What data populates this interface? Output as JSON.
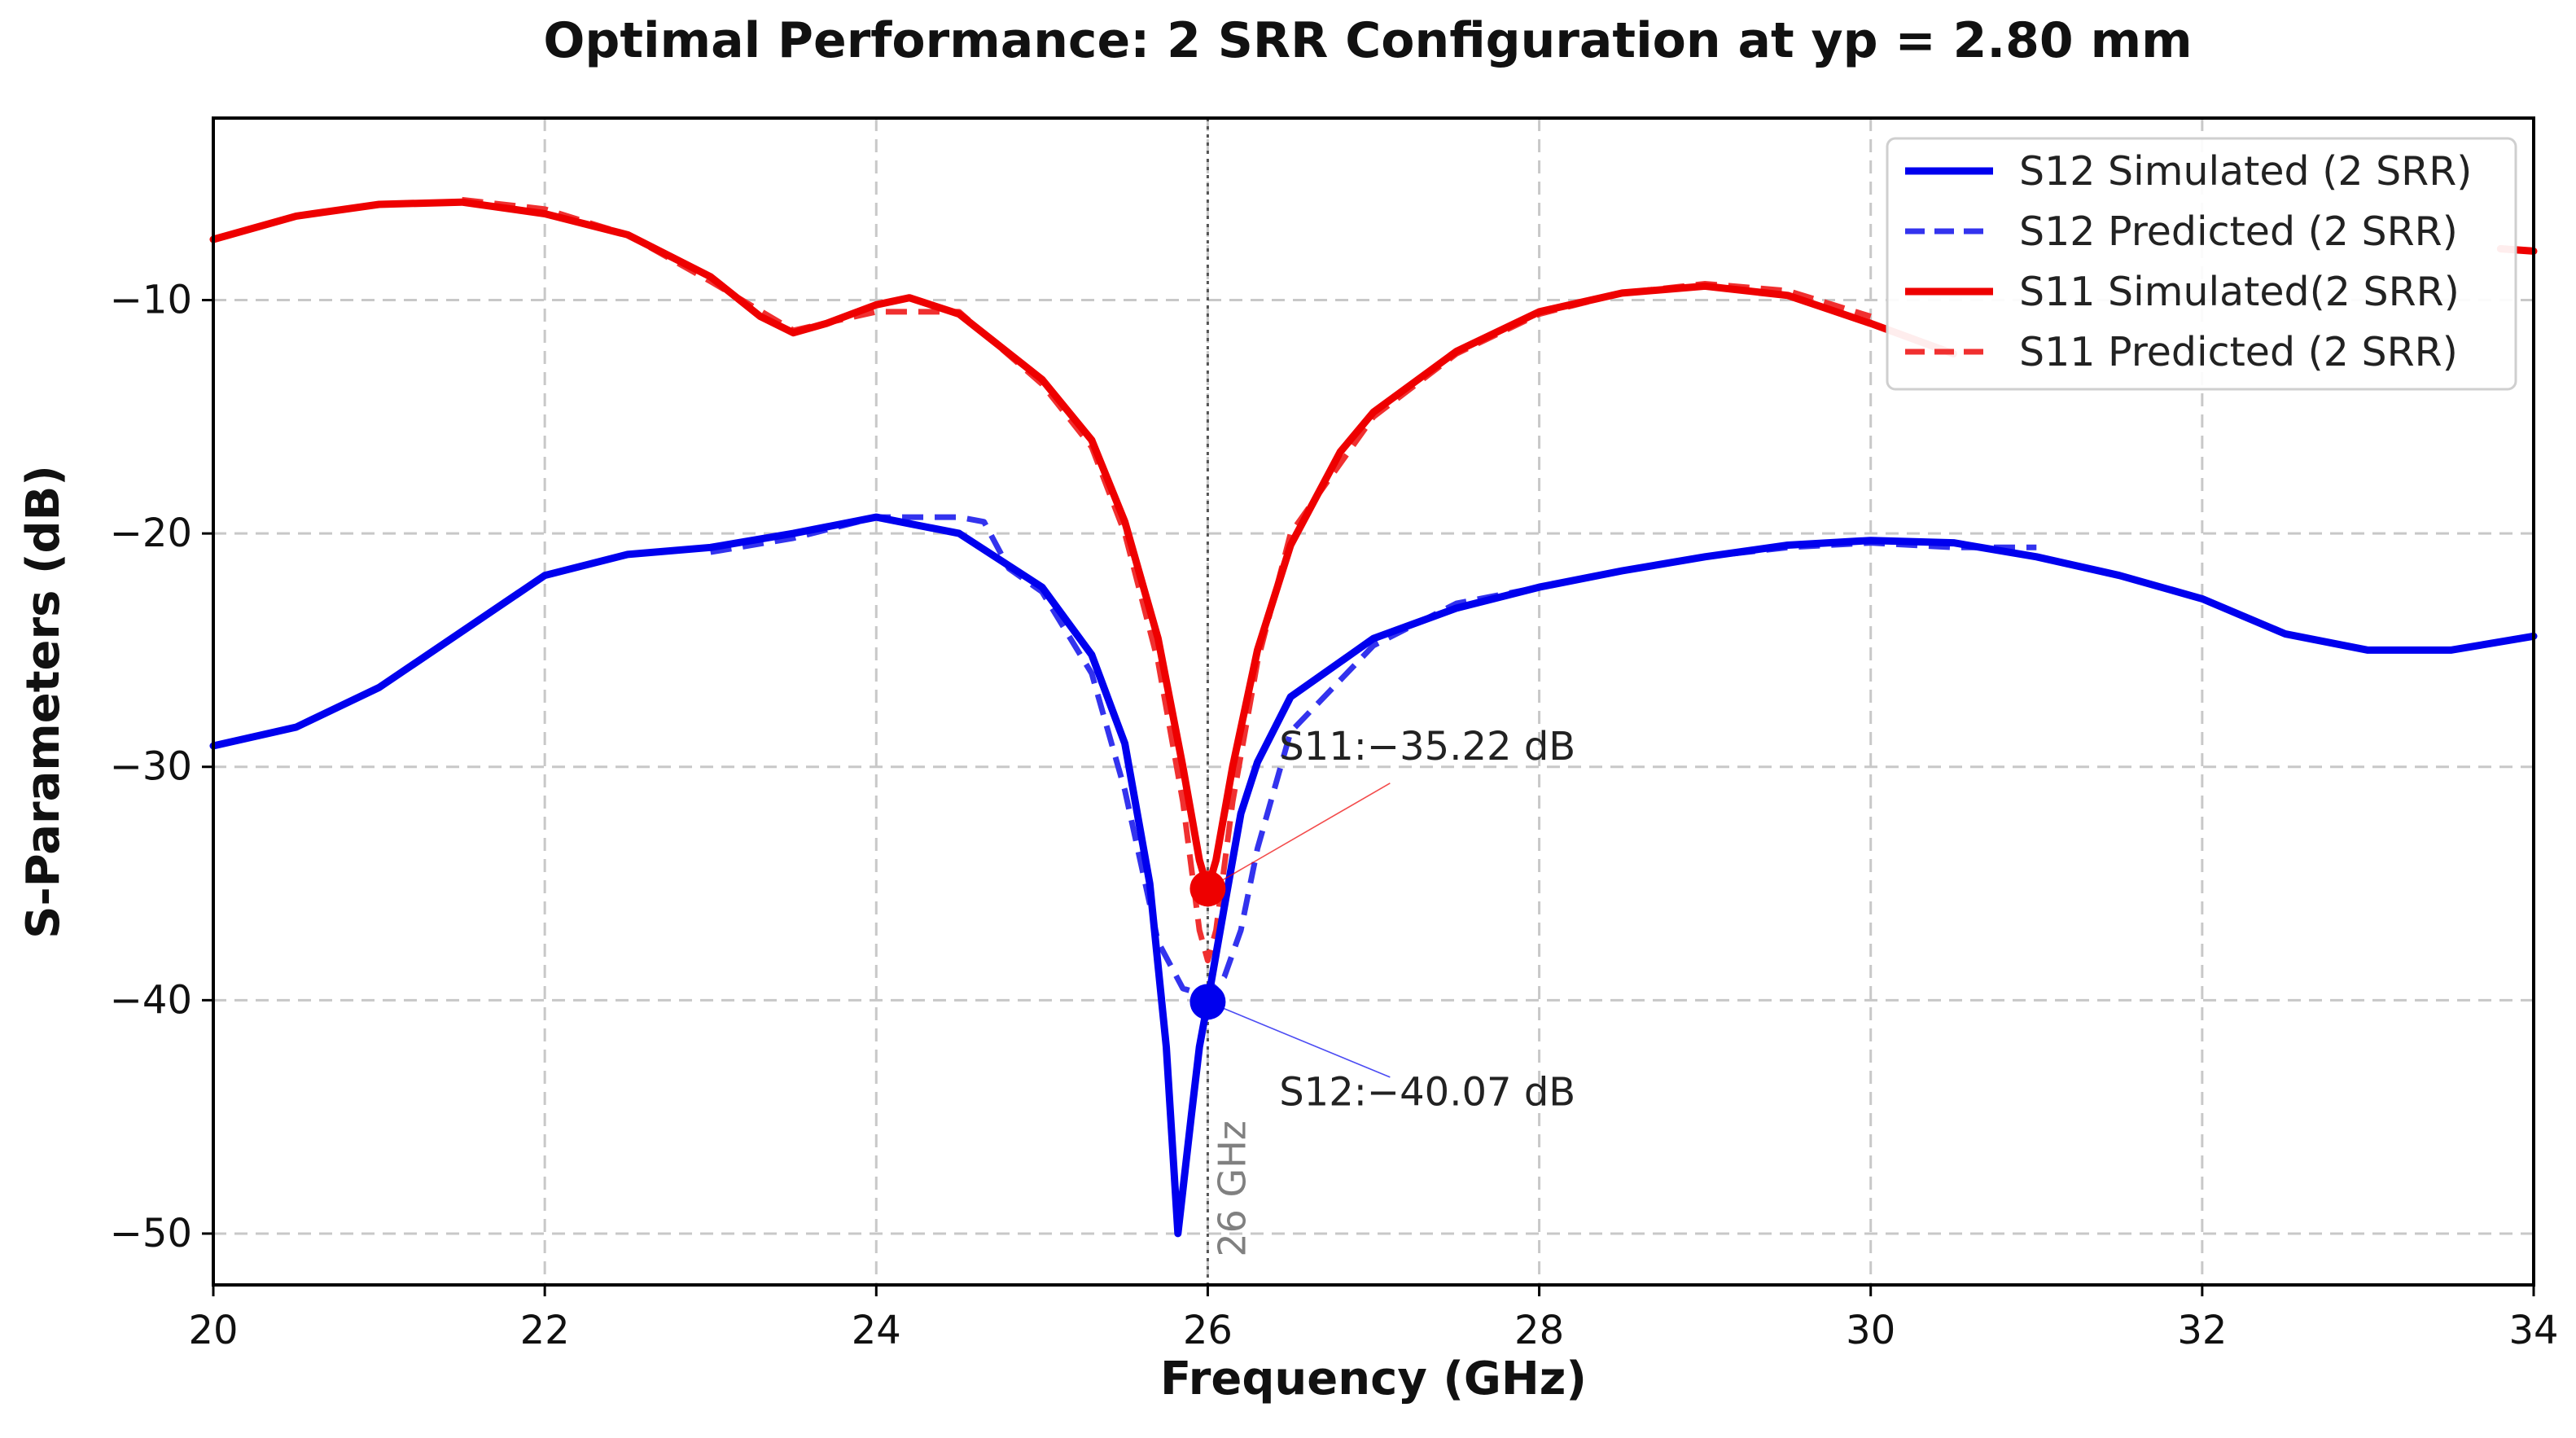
{
  "chart_data": {
    "type": "line",
    "title": "Optimal Performance: 2 SRR Configuration at yp = 2.80 mm",
    "xlabel": "Frequency (GHz)",
    "ylabel": "S-Parameters (dB)",
    "xlim": [
      20,
      34
    ],
    "ylim": [
      -52.2,
      -2.2
    ],
    "xticks": [
      20,
      22,
      24,
      26,
      28,
      30,
      32,
      34
    ],
    "xtick_labels": [
      "20",
      "22",
      "24",
      "26",
      "28",
      "30",
      "32",
      "34"
    ],
    "yticks": [
      -50,
      -40,
      -30,
      -20,
      -10
    ],
    "ytick_labels": [
      "−50",
      "−40",
      "−30",
      "−20",
      "−10"
    ],
    "grid": true,
    "legend_position": "top-right",
    "series": [
      {
        "name": "S12 Simulated (2 SRR)",
        "color": "#0000ee",
        "style": "solid",
        "points": [
          [
            20.0,
            -29.1
          ],
          [
            20.5,
            -28.3
          ],
          [
            21.0,
            -26.6
          ],
          [
            21.5,
            -24.2
          ],
          [
            22.0,
            -21.8
          ],
          [
            22.5,
            -20.9
          ],
          [
            23.0,
            -20.6
          ],
          [
            23.5,
            -20.0
          ],
          [
            24.0,
            -19.3
          ],
          [
            24.5,
            -20.0
          ],
          [
            25.0,
            -22.3
          ],
          [
            25.3,
            -25.2
          ],
          [
            25.5,
            -29.0
          ],
          [
            25.65,
            -35.0
          ],
          [
            25.75,
            -42.0
          ],
          [
            25.82,
            -50.0
          ],
          [
            25.9,
            -45.0
          ],
          [
            25.95,
            -42.0
          ],
          [
            26.0,
            -40.07
          ],
          [
            26.1,
            -36.0
          ],
          [
            26.2,
            -32.0
          ],
          [
            26.3,
            -29.8
          ],
          [
            26.5,
            -27.0
          ],
          [
            27.0,
            -24.5
          ],
          [
            27.5,
            -23.2
          ],
          [
            28.0,
            -22.3
          ],
          [
            28.5,
            -21.6
          ],
          [
            29.0,
            -21.0
          ],
          [
            29.5,
            -20.5
          ],
          [
            30.0,
            -20.3
          ],
          [
            30.5,
            -20.4
          ],
          [
            31.0,
            -21.0
          ],
          [
            31.5,
            -21.8
          ],
          [
            32.0,
            -22.8
          ],
          [
            32.5,
            -24.3
          ],
          [
            33.0,
            -25.0
          ],
          [
            33.5,
            -25.0
          ],
          [
            34.0,
            -24.4
          ]
        ]
      },
      {
        "name": "S12 Predicted (2 SRR)",
        "color": "#3333ee",
        "style": "dashed",
        "points": [
          [
            23.0,
            -20.8
          ],
          [
            23.5,
            -20.2
          ],
          [
            24.0,
            -19.3
          ],
          [
            24.5,
            -19.3
          ],
          [
            24.65,
            -19.5
          ],
          [
            24.8,
            -21.5
          ],
          [
            25.0,
            -22.5
          ],
          [
            25.3,
            -26.0
          ],
          [
            25.5,
            -31.0
          ],
          [
            25.7,
            -37.5
          ],
          [
            25.85,
            -39.5
          ],
          [
            26.0,
            -39.8
          ],
          [
            26.1,
            -39.0
          ],
          [
            26.2,
            -37.0
          ],
          [
            26.3,
            -33.5
          ],
          [
            26.5,
            -28.5
          ],
          [
            27.0,
            -24.8
          ],
          [
            27.5,
            -23.0
          ],
          [
            28.0,
            -22.3
          ],
          [
            28.5,
            -21.6
          ],
          [
            29.0,
            -21.0
          ],
          [
            29.5,
            -20.6
          ],
          [
            30.0,
            -20.4
          ],
          [
            30.5,
            -20.6
          ],
          [
            31.0,
            -20.6
          ]
        ]
      },
      {
        "name": "S11 Simulated(2 SRR)",
        "color": "#ee0000",
        "style": "solid",
        "points": [
          [
            20.0,
            -7.4
          ],
          [
            20.5,
            -6.4
          ],
          [
            21.0,
            -5.9
          ],
          [
            21.5,
            -5.8
          ],
          [
            22.0,
            -6.3
          ],
          [
            22.5,
            -7.2
          ],
          [
            23.0,
            -9.0
          ],
          [
            23.3,
            -10.7
          ],
          [
            23.5,
            -11.4
          ],
          [
            23.7,
            -11.0
          ],
          [
            24.0,
            -10.2
          ],
          [
            24.2,
            -9.9
          ],
          [
            24.5,
            -10.6
          ],
          [
            25.0,
            -13.4
          ],
          [
            25.3,
            -16.0
          ],
          [
            25.5,
            -19.5
          ],
          [
            25.7,
            -24.5
          ],
          [
            25.85,
            -30.0
          ],
          [
            25.95,
            -34.0
          ],
          [
            26.0,
            -35.22
          ],
          [
            26.05,
            -34.0
          ],
          [
            26.15,
            -30.0
          ],
          [
            26.3,
            -25.0
          ],
          [
            26.5,
            -20.5
          ],
          [
            26.8,
            -16.5
          ],
          [
            27.0,
            -14.8
          ],
          [
            27.5,
            -12.2
          ],
          [
            28.0,
            -10.5
          ],
          [
            28.5,
            -9.7
          ],
          [
            29.0,
            -9.4
          ],
          [
            29.5,
            -9.8
          ],
          [
            30.0,
            -11.0
          ],
          [
            30.5,
            -12.3
          ]
        ]
      },
      {
        "name": "S11 Predicted (2 SRR)",
        "color": "#f03030",
        "style": "dashed",
        "points": [
          [
            21.5,
            -5.7
          ],
          [
            22.0,
            -6.1
          ],
          [
            22.5,
            -7.2
          ],
          [
            23.0,
            -9.2
          ],
          [
            23.5,
            -11.3
          ],
          [
            24.0,
            -10.5
          ],
          [
            24.5,
            -10.5
          ],
          [
            25.0,
            -13.6
          ],
          [
            25.3,
            -16.3
          ],
          [
            25.5,
            -20.0
          ],
          [
            25.7,
            -25.5
          ],
          [
            25.85,
            -31.5
          ],
          [
            25.95,
            -37.0
          ],
          [
            26.0,
            -38.3
          ],
          [
            26.05,
            -37.0
          ],
          [
            26.15,
            -31.5
          ],
          [
            26.3,
            -25.5
          ],
          [
            26.5,
            -20.0
          ],
          [
            27.0,
            -15.0
          ],
          [
            27.5,
            -12.3
          ],
          [
            28.0,
            -10.6
          ],
          [
            28.5,
            -9.7
          ],
          [
            29.0,
            -9.3
          ],
          [
            29.5,
            -9.6
          ],
          [
            30.0,
            -10.7
          ]
        ]
      }
    ],
    "vline": {
      "x": 26,
      "label": "26 GHz",
      "color": "#808080"
    },
    "markers": [
      {
        "x": 26,
        "y": -35.22,
        "color": "#ee0000",
        "label": "S11:−35.22 dB",
        "label_x": 26.5,
        "label_y": -29.7
      },
      {
        "x": 26,
        "y": -40.07,
        "color": "#0000ee",
        "label": "S12:−40.07 dB",
        "label_x": 26.5,
        "label_y": -44.5
      }
    ],
    "extra_right_edge": {
      "s11_tail": [
        [
          33.8,
          -7.8
        ],
        [
          34.0,
          -7.9
        ]
      ]
    }
  }
}
